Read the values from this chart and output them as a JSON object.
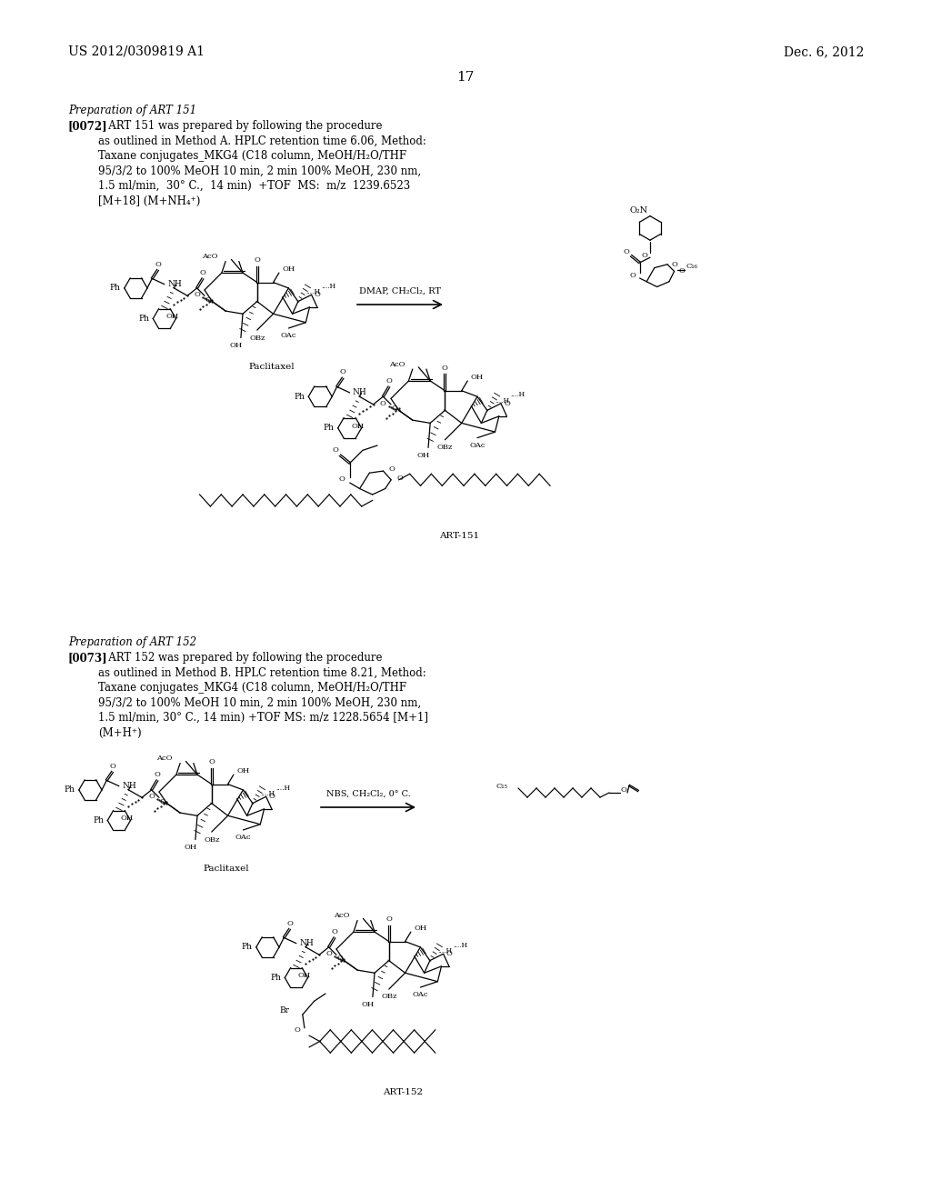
{
  "bg_color": "#ffffff",
  "header_left": "US 2012/0309819 A1",
  "header_right": "Dec. 6, 2012",
  "page_number": "17",
  "sec1_title": "Preparation of ART 151",
  "sec1_bold": "[0072]",
  "sec1_text": "   ART 151 was prepared by following the procedure\nas outlined in Method A. HPLC retention time 6.06, Method:\nTaxane conjugates_MKG4 (C18 column, MeOH/H₂O/THF\n95/3/2 to 100% MeOH 10 min, 2 min 100% MeOH, 230 nm,\n1.5 ml/min,  30° C.,  14 min)  +TOF  MS:  m/z  1239.6523\n[M+18] (M+NH₄⁺)",
  "sec2_title": "Preparation of ART 152",
  "sec2_bold": "[0073]",
  "sec2_text": "   ART 152 was prepared by following the procedure\nas outlined in Method B. HPLC retention time 8.21, Method:\nTaxane conjugates_MKG4 (C18 column, MeOH/H₂O/THF\n95/3/2 to 100% MeOH 10 min, 2 min 100% MeOH, 230 nm,\n1.5 ml/min, 30° C., 14 min) +TOF MS: m/z 1228.5654 [M+1]\n(M+H⁺)",
  "paclitaxel_label": "Paclitaxel",
  "art151_label": "ART-151",
  "art152_label": "ART-152",
  "reagent1": "DMAP, CH₂Cl₂, RT",
  "reagent2": "NBS, CH₂Cl₂, 0° C."
}
